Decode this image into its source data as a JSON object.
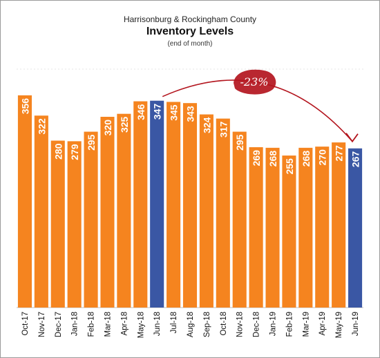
{
  "chart_data": {
    "type": "bar",
    "title": "Inventory Levels",
    "subtitle": "Harrisonburg & Rockingham County",
    "note": "(end of month)",
    "categories": [
      "Oct-17",
      "Nov-17",
      "Dec-17",
      "Jan-18",
      "Feb-18",
      "Mar-18",
      "Apr-18",
      "May-18",
      "Jun-18",
      "Jul-18",
      "Aug-18",
      "Sep-18",
      "Oct-18",
      "Nov-18",
      "Dec-18",
      "Jan-19",
      "Feb-19",
      "Mar-19",
      "Apr-19",
      "May-19",
      "Jun-19"
    ],
    "values": [
      356,
      322,
      280,
      279,
      295,
      320,
      325,
      346,
      347,
      345,
      343,
      324,
      317,
      295,
      269,
      268,
      255,
      268,
      270,
      277,
      267
    ],
    "highlight_indices": [
      8,
      20
    ],
    "bar_color": "#f5841f",
    "highlight_color": "#3a57a4",
    "annotation": {
      "text": "-23%",
      "from_category": "Jun-18",
      "to_category": "Jun-19",
      "color": "#b3151e"
    },
    "xlabel": "",
    "ylabel": "",
    "ylim": [
      0,
      400
    ],
    "grid": true,
    "legend": "none"
  }
}
